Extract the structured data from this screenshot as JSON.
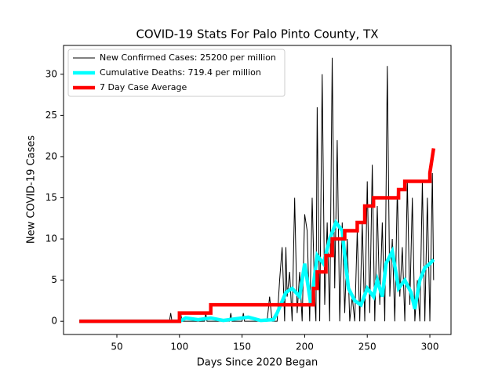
{
  "chart_data": {
    "type": "line",
    "title": "COVID-19 Stats For Palo Pinto County, TX",
    "xlabel": "Days Since 2020 Began",
    "ylabel": "New COVID-19 Cases",
    "xlim": [
      7.4,
      316.9
    ],
    "ylim": [
      -1.6,
      33.5
    ],
    "xticks": [
      50,
      100,
      150,
      200,
      250,
      300
    ],
    "yticks": [
      0,
      5,
      10,
      15,
      20,
      25,
      30
    ],
    "legend": "upper left",
    "series": [
      {
        "name": "New Confirmed Cases: 25200 per million",
        "color": "#000000",
        "x": [
          20,
          92,
          93,
          94,
          100,
          101,
          102,
          120,
          121,
          122,
          140,
          141,
          142,
          150,
          151,
          152,
          170,
          172,
          174,
          178,
          180,
          182,
          184,
          185,
          186,
          188,
          190,
          192,
          194,
          196,
          198,
          200,
          202,
          204,
          206,
          208,
          209,
          210,
          212,
          214,
          216,
          218,
          220,
          222,
          224,
          226,
          228,
          230,
          232,
          234,
          236,
          238,
          240,
          242,
          244,
          246,
          248,
          250,
          252,
          254,
          256,
          258,
          260,
          262,
          264,
          266,
          268,
          270,
          272,
          274,
          276,
          278,
          280,
          282,
          284,
          286,
          288,
          290,
          292,
          294,
          296,
          298,
          300,
          302,
          303
        ],
        "values": [
          0,
          0,
          1,
          0,
          0,
          1,
          0,
          0,
          1,
          0,
          0,
          1,
          0,
          0,
          1,
          0,
          0,
          3,
          0,
          0,
          5,
          9,
          0,
          9,
          3,
          6,
          0,
          15,
          1,
          6,
          0,
          13,
          11,
          0,
          15,
          3,
          0,
          26,
          0,
          30,
          2,
          12,
          0,
          32,
          4,
          22,
          0,
          12,
          1,
          10,
          0,
          3,
          0,
          11,
          0,
          12,
          0,
          17,
          1,
          19,
          0,
          14,
          2,
          12,
          0,
          31,
          3,
          10,
          0,
          16,
          3,
          9,
          0,
          17,
          2,
          15,
          0,
          5,
          0,
          17,
          0,
          15,
          0,
          18,
          5
        ]
      },
      {
        "name": "Cumulative Deaths: 719.4 per million",
        "color": "#00ffff",
        "x": [
          20,
          100,
          105,
          115,
          125,
          135,
          145,
          155,
          165,
          175,
          178,
          185,
          190,
          196,
          200,
          205,
          210,
          215,
          220,
          225,
          230,
          232,
          235,
          240,
          245,
          250,
          255,
          258,
          262,
          265,
          270,
          275,
          280,
          285,
          288,
          292,
          296,
          300,
          303
        ],
        "values": [
          0,
          0,
          0.4,
          0.2,
          0.4,
          0.1,
          0.3,
          0.5,
          0.1,
          0.2,
          1,
          3.5,
          4,
          3,
          7,
          2,
          8,
          7,
          10,
          12,
          11,
          8,
          4,
          2.5,
          2,
          4,
          3,
          5,
          3,
          7,
          8.5,
          4,
          5,
          3.5,
          1.5,
          5,
          6.5,
          7,
          7.5
        ]
      },
      {
        "name": "7 Day Case Average",
        "color": "#ff0000",
        "x": [
          20,
          100,
          100,
          125,
          125,
          207,
          207,
          210,
          210,
          217,
          217,
          222,
          222,
          232,
          232,
          242,
          242,
          248,
          248,
          255,
          255,
          275,
          275,
          280,
          280,
          300,
          300,
          303
        ],
        "values": [
          0,
          0,
          1,
          1,
          2,
          2,
          4,
          4,
          6,
          6,
          8,
          8,
          10,
          10,
          11,
          11,
          12,
          12,
          14,
          14,
          15,
          15,
          16,
          16,
          17,
          17,
          18,
          21
        ]
      }
    ]
  }
}
